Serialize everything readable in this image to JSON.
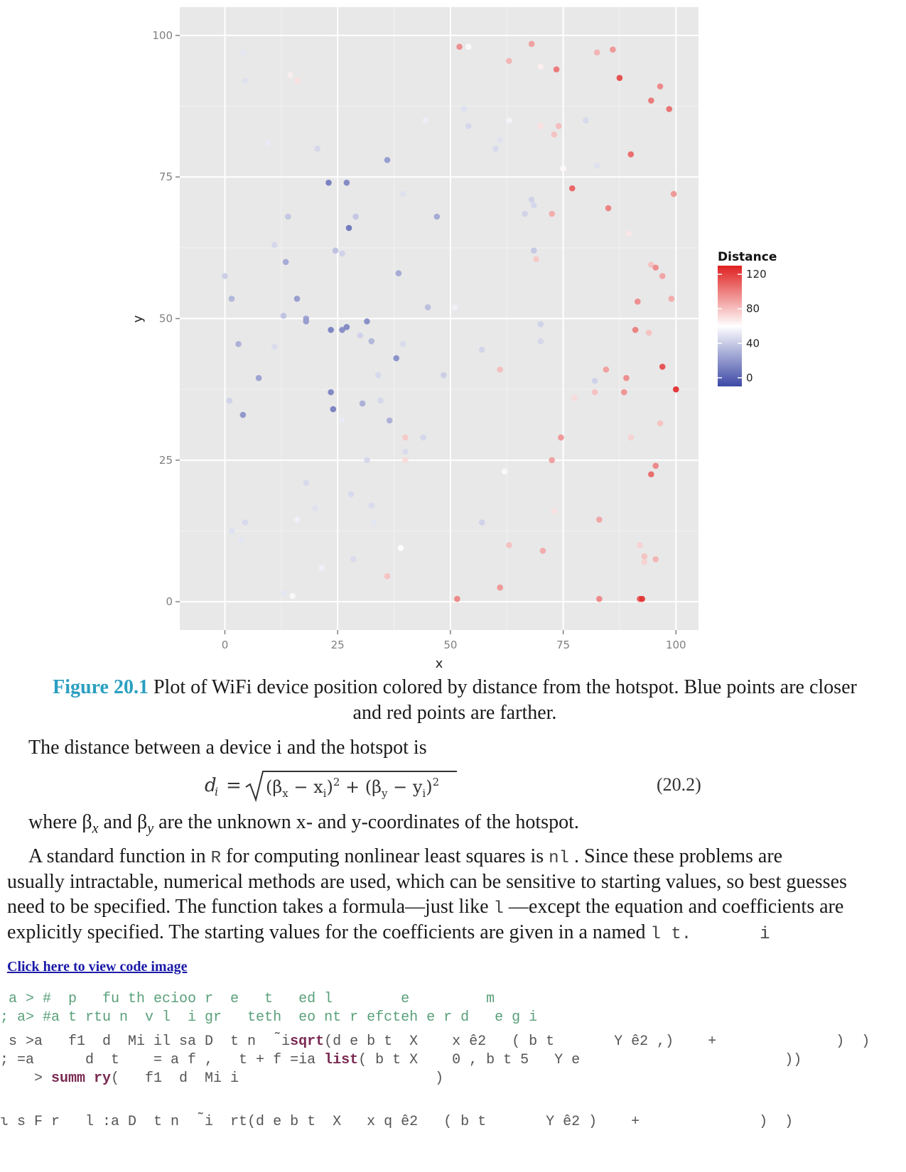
{
  "chart_data": {
    "type": "scatter",
    "xlabel": "x",
    "ylabel": "y",
    "xlim": [
      -10,
      105
    ],
    "ylim": [
      -5,
      105
    ],
    "x_ticks": [
      0,
      25,
      50,
      75,
      100
    ],
    "y_ticks": [
      0,
      25,
      50,
      75,
      100
    ],
    "grid": true,
    "legend": {
      "title": "Distance",
      "position": "right",
      "ticks": [
        120,
        80,
        40,
        0
      ],
      "range": [
        -10,
        130
      ]
    },
    "colors": {
      "low": "#3d48a6",
      "mid": "#ffffff",
      "high": "#e02020",
      "panel": "#e8e8e8",
      "grid": "#ffffff"
    },
    "points": [
      [
        1.5,
        53.5,
        30
      ],
      [
        3,
        45.5,
        28
      ],
      [
        4,
        33,
        17
      ],
      [
        7.5,
        39.5,
        22
      ],
      [
        1,
        35.5,
        42
      ],
      [
        0,
        57.5,
        40
      ],
      [
        4,
        97,
        50
      ],
      [
        4.5,
        92,
        48
      ],
      [
        9.5,
        81,
        52
      ],
      [
        11,
        63,
        44
      ],
      [
        11,
        45,
        46
      ],
      [
        13,
        50.5,
        36
      ],
      [
        13.5,
        60,
        25
      ],
      [
        14,
        68,
        37
      ],
      [
        14.5,
        93,
        45
      ],
      [
        16,
        53.5,
        20
      ],
      [
        18,
        49.5,
        20
      ],
      [
        18,
        50,
        22
      ],
      [
        20.5,
        80,
        44
      ],
      [
        23,
        74,
        8
      ],
      [
        23.5,
        48,
        10
      ],
      [
        23.5,
        37,
        11
      ],
      [
        24,
        34,
        9
      ],
      [
        24.5,
        62,
        35
      ],
      [
        26,
        48,
        14
      ],
      [
        26,
        61.5,
        42
      ],
      [
        27,
        48.5,
        12
      ],
      [
        27,
        74,
        12
      ],
      [
        27.5,
        66,
        5
      ],
      [
        29,
        68,
        37
      ],
      [
        30,
        47,
        42
      ],
      [
        30.5,
        35,
        28
      ],
      [
        31.5,
        49.5,
        14
      ],
      [
        32.5,
        46,
        30
      ],
      [
        34,
        40,
        45
      ],
      [
        34.5,
        35.5,
        44
      ],
      [
        36,
        78,
        20
      ],
      [
        36.5,
        32,
        28
      ],
      [
        38,
        43,
        15
      ],
      [
        38.5,
        58,
        25
      ],
      [
        39.5,
        45.5,
        46
      ],
      [
        39.5,
        72,
        48
      ],
      [
        47,
        68,
        25
      ],
      [
        45,
        52,
        34
      ],
      [
        48.5,
        40,
        40
      ],
      [
        44.5,
        85,
        53
      ],
      [
        53,
        87,
        48
      ],
      [
        51,
        52,
        55
      ],
      [
        57,
        44.5,
        43
      ],
      [
        31.5,
        25,
        44
      ],
      [
        28,
        19,
        45
      ],
      [
        32.5,
        17,
        46
      ],
      [
        33,
        14,
        50
      ],
      [
        28.5,
        7.5,
        46
      ],
      [
        40,
        26.5,
        46
      ],
      [
        39,
        9.5,
        60
      ],
      [
        18,
        21,
        45
      ],
      [
        20,
        16.5,
        48
      ],
      [
        13,
        1.5,
        50
      ],
      [
        15,
        1,
        58
      ],
      [
        1.5,
        12.5,
        48
      ],
      [
        3.5,
        11,
        50
      ],
      [
        4.5,
        14,
        45
      ],
      [
        16,
        14.5,
        55
      ],
      [
        21.5,
        6,
        55
      ],
      [
        26,
        32,
        52
      ],
      [
        52,
        98,
        98
      ],
      [
        54,
        98,
        58
      ],
      [
        63,
        95.5,
        85
      ],
      [
        68,
        98.5,
        92
      ],
      [
        70,
        94.5,
        65
      ],
      [
        73.5,
        94,
        105
      ],
      [
        63,
        85,
        56
      ],
      [
        60,
        80,
        45
      ],
      [
        61,
        81.5,
        48
      ],
      [
        70,
        84,
        70
      ],
      [
        73,
        82.5,
        80
      ],
      [
        74,
        84,
        82
      ],
      [
        68,
        71,
        42
      ],
      [
        68.5,
        70,
        44
      ],
      [
        66.5,
        68.5,
        42
      ],
      [
        72.5,
        68.5,
        88
      ],
      [
        77,
        73,
        112
      ],
      [
        68.5,
        62,
        38
      ],
      [
        69,
        60.5,
        78
      ],
      [
        70,
        49,
        42
      ],
      [
        70,
        46,
        44
      ],
      [
        75,
        76.5,
        62
      ],
      [
        80,
        85,
        45
      ],
      [
        82.5,
        77,
        48
      ],
      [
        82.5,
        97,
        85
      ],
      [
        86,
        97.5,
        95
      ],
      [
        87.5,
        92.5,
        120
      ],
      [
        94.5,
        88.5,
        105
      ],
      [
        96.5,
        91,
        100
      ],
      [
        98.5,
        87,
        108
      ],
      [
        90,
        79,
        110
      ],
      [
        99.5,
        72,
        95
      ],
      [
        85,
        69.5,
        102
      ],
      [
        89.5,
        65,
        68
      ],
      [
        94.5,
        59.5,
        80
      ],
      [
        95.5,
        59,
        98
      ],
      [
        97,
        57.5,
        90
      ],
      [
        99,
        53.5,
        88
      ],
      [
        91.5,
        53,
        98
      ],
      [
        91,
        48,
        102
      ],
      [
        94,
        47.5,
        80
      ],
      [
        84.5,
        41,
        92
      ],
      [
        89,
        39.5,
        98
      ],
      [
        88.5,
        37,
        96
      ],
      [
        82,
        37,
        80
      ],
      [
        77.5,
        36,
        72
      ],
      [
        82,
        39,
        42
      ],
      [
        97,
        41.5,
        118
      ],
      [
        100,
        37.5,
        128
      ],
      [
        96.5,
        31.5,
        80
      ],
      [
        90,
        29,
        75
      ],
      [
        74.5,
        29,
        95
      ],
      [
        72.5,
        25,
        92
      ],
      [
        95.5,
        24,
        100
      ],
      [
        94.5,
        22.5,
        110
      ],
      [
        73,
        16,
        70
      ],
      [
        83,
        14.5,
        90
      ],
      [
        92,
        10,
        75
      ],
      [
        93,
        8,
        80
      ],
      [
        95.5,
        7.5,
        85
      ],
      [
        93,
        7,
        75
      ],
      [
        70.5,
        9,
        88
      ],
      [
        63,
        10,
        80
      ],
      [
        61,
        2.5,
        95
      ],
      [
        83,
        0.5,
        100
      ],
      [
        92,
        0.5,
        115
      ],
      [
        92.5,
        0.5,
        125
      ],
      [
        51.5,
        0.5,
        100
      ],
      [
        61,
        41,
        82
      ],
      [
        57,
        14,
        42
      ],
      [
        62,
        23,
        58
      ],
      [
        36,
        4.5,
        80
      ],
      [
        40,
        29,
        78
      ],
      [
        40,
        25,
        72
      ],
      [
        44,
        29,
        44
      ],
      [
        14.5,
        93,
        65
      ],
      [
        16,
        92,
        70
      ],
      [
        54,
        84,
        44
      ]
    ]
  },
  "caption": {
    "label": "Figure 20.1",
    "line1": " Plot of WiFi device position colored by distance from the hotspot. Blue points are closer",
    "line2": "and red points are farther."
  },
  "body": {
    "p1": "The distance between a device i and the hotspot is",
    "equation_number": "(20.2)",
    "p2_a": "where β",
    "p2_sub1": "x",
    "p2_b": " and β",
    "p2_sub2": "y",
    "p2_c": " are the unknown x- and y-coordinates of the hotspot.",
    "p3_l1_a": "A standard function in ",
    "p3_l1_code1": "R",
    "p3_l1_b": " for computing nonlinear least squares is ",
    "p3_l1_code2": "nl",
    "p3_l1_c": "  . Since these problems are",
    "p3_l2": "usually intractable, numerical methods are used, which can be sensitive to starting values, so best guesses",
    "p3_l3_a": "need to be specified. The function takes a formula—just like ",
    "p3_l3_code": "l",
    "p3_l3_b": "  —except the equation and coefficients are",
    "p3_l4_a": "explicitly specified. The starting values for the coefficients are given in a named ",
    "p3_l4_code": "l    t.",
    "p3_l4_tail": "i",
    "link": "Click here to view code image"
  },
  "code": {
    "line1": " a > #  p   fu th ecioo r  e   t   ed l        e         m",
    "line2": "; a> #a t rtu n  v l  i gr   teth  eo nt r efcteh e r d   e g i",
    "line3_a": " s >a   f1  d  Mi il sa D  t n   ̃i",
    "line3_kw": "sqrt",
    "line3_b": "(d e b t  X    x ê2   ( b t       Y ê2 ,)    +              )  )",
    "line4_a": "; =a      d  t    = a f ,   t + f =ia ",
    "line4_kw": "list",
    "line4_b": "( b t X    0 , b t 5   Y e                        ))",
    "line5_a": "    > ",
    "line5_kw": "summ ry",
    "line5_b": "(   f1  d  Mi i                       )",
    "line6": "ι s F r   l :a D  t n   ̃i  rt(d e b t  X   x q ê2   ( b t       Y ê2 )    +              )  )"
  }
}
